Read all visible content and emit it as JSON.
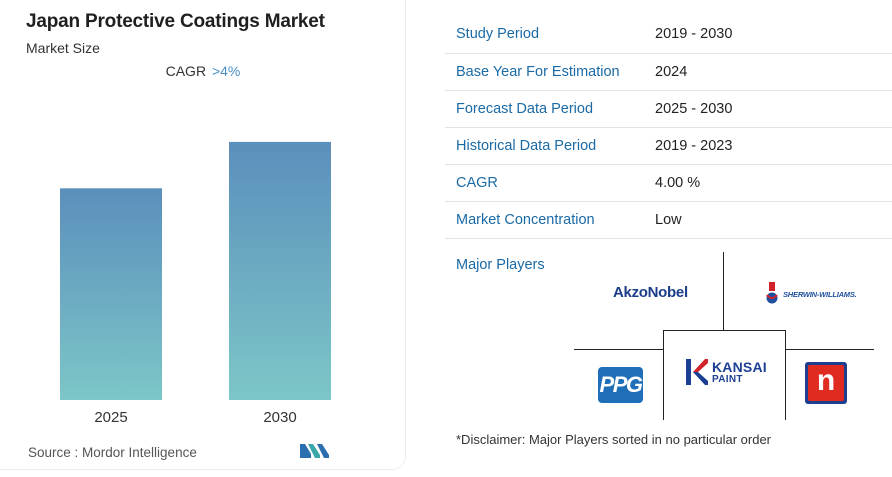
{
  "header": {
    "title": "Japan Protective Coatings Market",
    "subtitle": "Market Size",
    "cagr_label": "CAGR",
    "cagr_value": ">4%"
  },
  "chart_data": {
    "type": "bar",
    "title": "Japan Protective Coatings Market",
    "subtitle": "Market Size",
    "categories": [
      "2025",
      "2030"
    ],
    "values": [
      0.73,
      0.89
    ],
    "value_note": "relative bar heights; no y-axis values shown",
    "ylim": [
      0,
      1
    ],
    "grid": false,
    "legend": "none",
    "colors": {
      "top": "#5b8fbc",
      "bottom": "#7cc6c7"
    }
  },
  "footer": {
    "source": "Source :  Mordor Intelligence"
  },
  "info_rows": [
    {
      "key": "Study Period",
      "value": "2019 - 2030"
    },
    {
      "key": "Base Year For Estimation",
      "value": "2024"
    },
    {
      "key": "Forecast Data Period",
      "value": "2025 - 2030"
    },
    {
      "key": "Historical Data Period",
      "value": "2019 - 2023"
    },
    {
      "key": "CAGR",
      "value": "4.00 %"
    },
    {
      "key": "Market Concentration",
      "value": "Low"
    }
  ],
  "players": {
    "label": "Major Players",
    "logos": {
      "akzonobel": "AkzoNobel",
      "sherwin": "Sherwin-Williams.",
      "ppg": "PPG",
      "kansai_1": "KANSAI",
      "kansai_2": "PAINT",
      "nippon": "n"
    },
    "disclaimer": "*Disclaimer: Major Players sorted in no particular order"
  },
  "colors": {
    "accent": "#1a6aa6",
    "cagr": "#4a90c6",
    "bar_top": "#5b8fbc",
    "bar_bottom": "#7cc6c7"
  }
}
